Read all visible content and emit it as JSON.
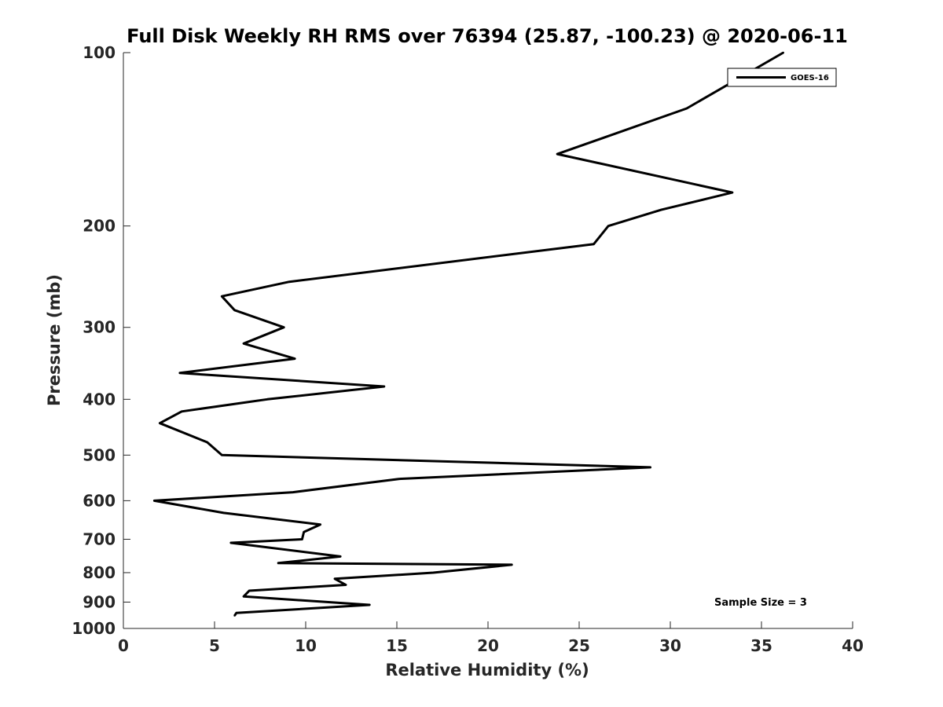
{
  "chart_data": {
    "type": "line",
    "title": "Full Disk Weekly RH RMS over 76394 (25.87, -100.23) @ 2020-06-11",
    "xlabel": "Relative Humidity (%)",
    "ylabel": "Pressure (mb)",
    "xlim": [
      0,
      40
    ],
    "ylim": [
      100,
      1000
    ],
    "y_scale": "log",
    "y_direction": "reversed",
    "xticks": [
      0,
      5,
      10,
      15,
      20,
      25,
      30,
      35,
      40
    ],
    "yticks": [
      100,
      200,
      300,
      400,
      500,
      600,
      700,
      800,
      900,
      1000
    ],
    "grid": false,
    "legend_position": "top-right",
    "annotation": "Sample Size = 3",
    "series": [
      {
        "name": "GOES-16",
        "color": "#000000",
        "points": [
          {
            "x": 36.2,
            "p": 100
          },
          {
            "x": 30.9,
            "p": 125
          },
          {
            "x": 23.8,
            "p": 150
          },
          {
            "x": 33.4,
            "p": 175
          },
          {
            "x": 29.5,
            "p": 187.5
          },
          {
            "x": 26.6,
            "p": 200
          },
          {
            "x": 25.8,
            "p": 215
          },
          {
            "x": 9.1,
            "p": 250
          },
          {
            "x": 5.4,
            "p": 265
          },
          {
            "x": 6.1,
            "p": 280
          },
          {
            "x": 8.8,
            "p": 300
          },
          {
            "x": 6.6,
            "p": 320
          },
          {
            "x": 9.4,
            "p": 340
          },
          {
            "x": 3.1,
            "p": 360
          },
          {
            "x": 14.3,
            "p": 380
          },
          {
            "x": 7.9,
            "p": 400
          },
          {
            "x": 3.2,
            "p": 420
          },
          {
            "x": 2.0,
            "p": 440
          },
          {
            "x": 4.6,
            "p": 475
          },
          {
            "x": 5.4,
            "p": 500
          },
          {
            "x": 28.9,
            "p": 525
          },
          {
            "x": 15.1,
            "p": 550
          },
          {
            "x": 9.3,
            "p": 580
          },
          {
            "x": 1.7,
            "p": 600
          },
          {
            "x": 5.5,
            "p": 630
          },
          {
            "x": 10.8,
            "p": 660
          },
          {
            "x": 9.9,
            "p": 680
          },
          {
            "x": 9.8,
            "p": 700
          },
          {
            "x": 5.9,
            "p": 710
          },
          {
            "x": 11.9,
            "p": 750
          },
          {
            "x": 8.5,
            "p": 770
          },
          {
            "x": 21.3,
            "p": 775
          },
          {
            "x": 17.0,
            "p": 800
          },
          {
            "x": 11.6,
            "p": 820
          },
          {
            "x": 12.2,
            "p": 840
          },
          {
            "x": 6.9,
            "p": 860
          },
          {
            "x": 6.6,
            "p": 880
          },
          {
            "x": 13.5,
            "p": 910
          },
          {
            "x": 6.2,
            "p": 940
          },
          {
            "x": 6.1,
            "p": 950
          }
        ]
      }
    ]
  }
}
